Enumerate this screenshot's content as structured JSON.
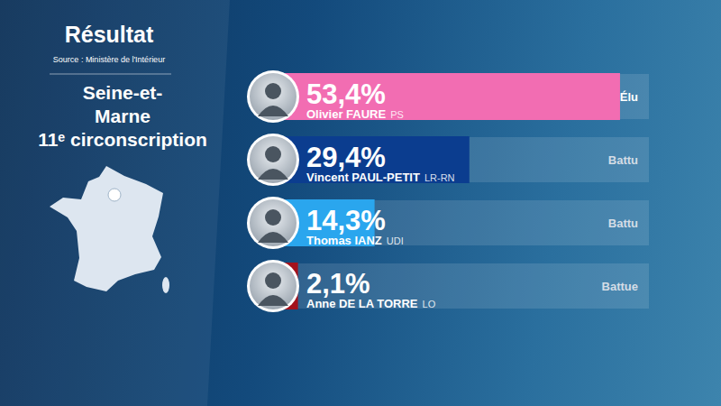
{
  "chart_data": {
    "type": "bar",
    "orientation": "horizontal",
    "title": "Résultat",
    "subtitle": "Source : Ministère de l'Intérieur",
    "annotations": [
      "Seine-et-",
      "Marne",
      "11ᵉ circonscription"
    ],
    "categories": [
      "Olivier FAURE",
      "Vincent PAUL-PETIT",
      "Thomas IANZ",
      "Anne DE LA TORRE"
    ],
    "parties": [
      "PS",
      "LR-RN",
      "UDI",
      "LO"
    ],
    "status": [
      "Élu",
      "Battu",
      "Battu",
      "Battue"
    ],
    "values": [
      53.4,
      29.4,
      14.3,
      2.1
    ],
    "value_labels": [
      "53,4%",
      "29,4%",
      "14,3%",
      "2,1%"
    ],
    "colors": [
      "#f26db2",
      "#0b3d8f",
      "#2aa6ee",
      "#a3121c"
    ],
    "xlim": [
      0,
      58
    ],
    "data_labels": true,
    "tick_labels": false,
    "grid": false
  }
}
